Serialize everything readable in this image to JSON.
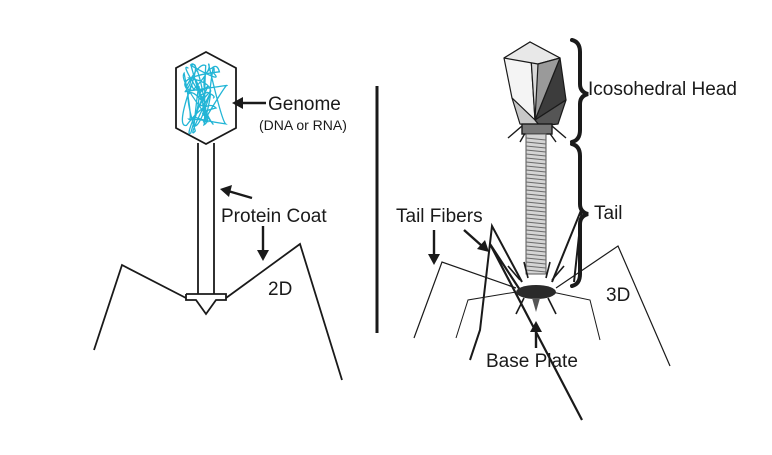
{
  "labels": {
    "genome": "Genome",
    "genome_sub": "(DNA or RNA)",
    "protein_coat": "Protein Coat",
    "view_2d": "2D",
    "icosahedral_head": "Icosohedral Head",
    "tail": "Tail",
    "tail_fibers": "Tail Fibers",
    "view_3d": "3D",
    "base_plate": "Base Plate"
  },
  "colors": {
    "genome_strand": "#22b5d6",
    "line": "#1a1a1a",
    "head_light": "#f2f2f2",
    "head_mid": "#a0a0a0",
    "head_dark": "#3c3c3c",
    "base_plate": "#2a2a2a"
  }
}
